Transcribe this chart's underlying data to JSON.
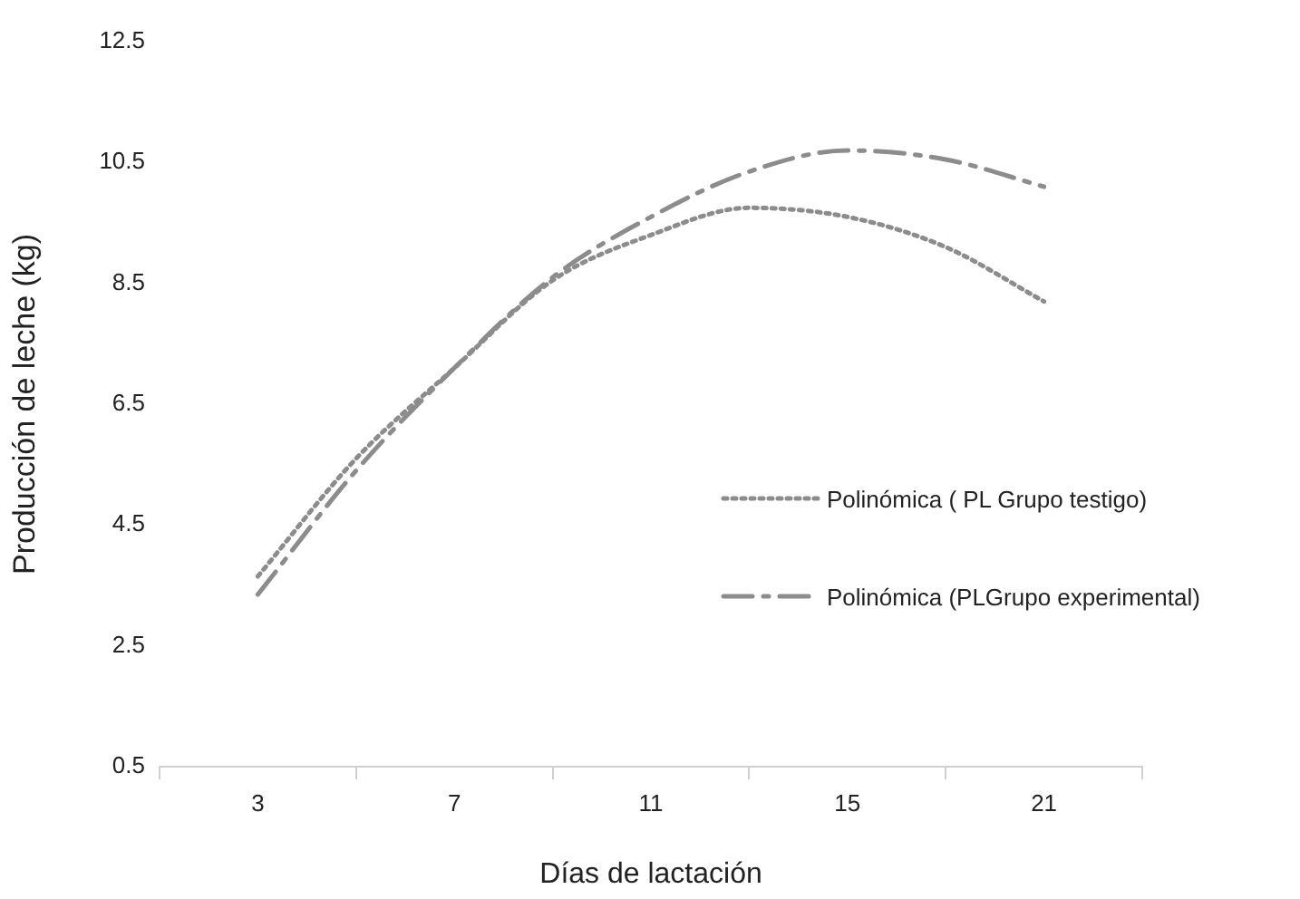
{
  "chart_data": {
    "type": "line",
    "xlabel": "Días de lactación",
    "ylabel": "Producción de leche (kg)",
    "categories": [
      null,
      "3",
      null,
      "7",
      null,
      "11",
      null,
      "15",
      null,
      "21",
      null
    ],
    "series": [
      {
        "name": "Polinómica ( PL Grupo testigo)",
        "color": "#8c8c8c",
        "line_style": "dotted",
        "values": [
          null,
          3.65,
          5.6,
          7.1,
          8.55,
          9.3,
          9.75,
          9.6,
          9.1,
          8.2,
          null
        ]
      },
      {
        "name": "Polinómica (PLGrupo experimental)",
        "color": "#8c8c8c",
        "line_style": "dashed",
        "values": [
          null,
          3.35,
          5.4,
          7.1,
          8.6,
          9.6,
          10.35,
          10.7,
          10.55,
          10.1,
          null
        ]
      }
    ],
    "ylim": [
      0.5,
      12.5
    ],
    "yticks": [
      0.5,
      2.5,
      4.5,
      6.5,
      8.5,
      10.5,
      12.5
    ],
    "grid": false,
    "legend": "right",
    "marker": "none"
  }
}
